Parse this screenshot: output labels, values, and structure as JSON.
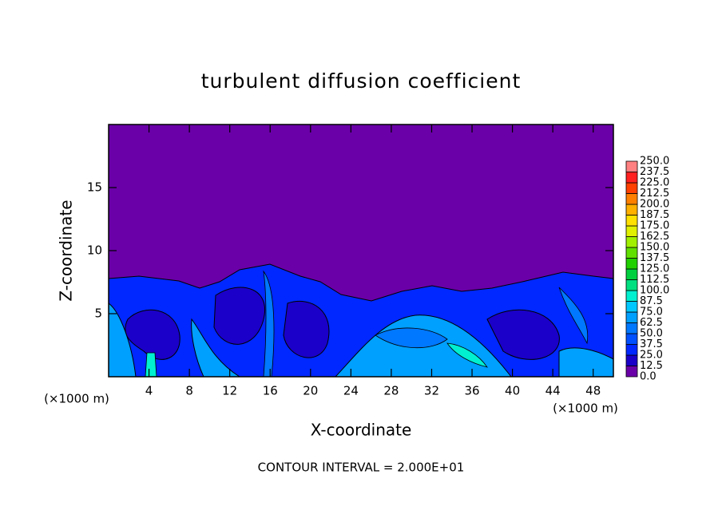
{
  "chart_data": {
    "type": "contour",
    "title": "turbulent diffusion coefficient",
    "x_label": "X-coordinate",
    "y_label": "Z-coordinate",
    "x_unit": "(×1000 m)",
    "y_unit": "(×1000 m)",
    "annotation": "CONTOUR INTERVAL = 2.000E+01",
    "xlim": [
      0,
      50
    ],
    "xticks": [
      4,
      8,
      12,
      16,
      20,
      24,
      28,
      32,
      36,
      40,
      44,
      48
    ],
    "ylim": [
      0,
      20
    ],
    "yticks": [
      5,
      10,
      15
    ],
    "colorbar": {
      "levels": [
        {
          "value": 0,
          "label": "0.0"
        },
        12.5,
        {
          "value": 25,
          "label": "25.0"
        },
        37.5,
        {
          "value": 50,
          "label": "50.0"
        },
        62.5,
        {
          "value": 75,
          "label": "75.0"
        },
        87.5,
        {
          "value": 100,
          "label": "100.0"
        },
        112.5,
        {
          "value": 125,
          "label": "125.0"
        },
        137.5,
        {
          "value": 150,
          "label": "150.0"
        },
        162.5,
        {
          "value": 175,
          "label": "175.0"
        },
        187.5,
        {
          "value": 200,
          "label": "200.0"
        },
        212.5,
        {
          "value": 225,
          "label": "225.0"
        },
        237.5,
        {
          "value": 250,
          "label": "250.0"
        }
      ],
      "colors": [
        "#6a00a8",
        "#1a00c8",
        "#0028ff",
        "#0050ff",
        "#0078ff",
        "#00a0ff",
        "#00c8ff",
        "#00f0d0",
        "#00e080",
        "#00d040",
        "#20d000",
        "#60e000",
        "#a0f000",
        "#e0f000",
        "#ffe000",
        "#ffb000",
        "#ff8000",
        "#ff4000",
        "#ff2020",
        "#ff8080"
      ]
    }
  }
}
